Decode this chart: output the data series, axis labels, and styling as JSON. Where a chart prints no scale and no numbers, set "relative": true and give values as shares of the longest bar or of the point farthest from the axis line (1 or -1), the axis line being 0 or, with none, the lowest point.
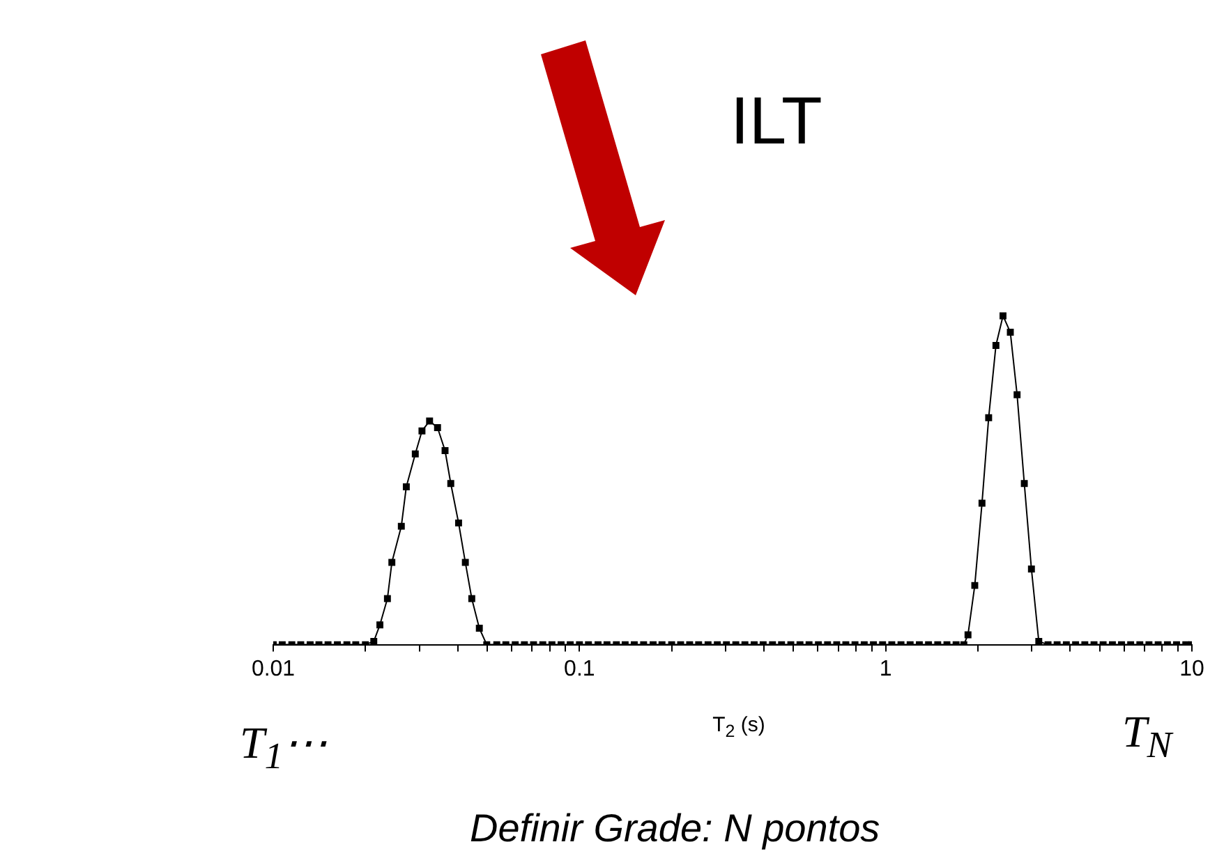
{
  "chart_data": {
    "type": "line",
    "relative": true,
    "xlabel": "T$_{2}$ (s)",
    "log": "x",
    "xlim": [
      0.01,
      10
    ],
    "xticks": [
      0.01,
      {
        "value": 0.02,
        "label": null
      },
      {
        "value": 0.03,
        "label": null
      },
      {
        "value": 0.04,
        "label": null
      },
      {
        "value": 0.05,
        "label": null
      },
      {
        "value": 0.06,
        "label": null
      },
      {
        "value": 0.07,
        "label": null
      },
      {
        "value": 0.08,
        "label": null
      },
      {
        "value": 0.09,
        "label": null
      },
      0.1,
      {
        "value": 0.2,
        "label": null
      },
      {
        "value": 0.3,
        "label": null
      },
      {
        "value": 0.4,
        "label": null
      },
      {
        "value": 0.5,
        "label": null
      },
      {
        "value": 0.6,
        "label": null
      },
      {
        "value": 0.7,
        "label": null
      },
      {
        "value": 0.8,
        "label": null
      },
      {
        "value": 0.9,
        "label": null
      },
      1,
      {
        "value": 2,
        "label": null
      },
      {
        "value": 3,
        "label": null
      },
      {
        "value": 4,
        "label": null
      },
      {
        "value": 5,
        "label": null
      },
      {
        "value": 6,
        "label": null
      },
      {
        "value": 7,
        "label": null
      },
      {
        "value": 8,
        "label": null
      },
      {
        "value": 9,
        "label": null
      },
      10
    ],
    "grid": false,
    "legend": false,
    "marker": "square",
    "line_style": "solid",
    "annotations": [
      "ILT",
      "T$_{1}$⋯",
      "T$_{N}$",
      "Definir Grade: N pontos"
    ],
    "series": [
      {
        "color": "#000000",
        "x": [
          0.01,
          0.0107,
          0.0115,
          0.0123,
          0.0132,
          0.0141,
          0.0151,
          0.0162,
          0.0174,
          0.0186,
          0.02,
          0.0213,
          0.0223,
          0.0236,
          0.0244,
          0.0262,
          0.0272,
          0.0291,
          0.0306,
          0.0324,
          0.0344,
          0.0364,
          0.038,
          0.0403,
          0.0424,
          0.0445,
          0.0471,
          0.0498,
          0.0537,
          0.0575,
          0.0617,
          0.0661,
          0.0708,
          0.0759,
          0.0813,
          0.0871,
          0.0933,
          0.1,
          0.107,
          0.115,
          0.123,
          0.132,
          0.141,
          0.151,
          0.162,
          0.174,
          0.186,
          0.2,
          0.214,
          0.229,
          0.245,
          0.263,
          0.282,
          0.302,
          0.324,
          0.347,
          0.372,
          0.398,
          0.427,
          0.457,
          0.49,
          0.525,
          0.562,
          0.603,
          0.646,
          0.692,
          0.741,
          0.794,
          0.851,
          0.912,
          0.977,
          1.047,
          1.122,
          1.202,
          1.288,
          1.38,
          1.479,
          1.585,
          1.698,
          1.8,
          1.857,
          1.954,
          2.063,
          2.169,
          2.291,
          2.416,
          2.553,
          2.686,
          2.836,
          2.992,
          3.162,
          3.39,
          3.63,
          3.89,
          4.17,
          4.47,
          4.79,
          5.13,
          5.5,
          5.89,
          6.31,
          6.76,
          7.24,
          7.76,
          8.32,
          8.91,
          9.55,
          10
        ],
        "values": [
          0,
          0,
          0,
          0,
          0,
          0,
          0,
          0,
          0,
          0,
          0,
          0.01,
          0.06,
          0.14,
          0.25,
          0.36,
          0.48,
          0.58,
          0.65,
          0.68,
          0.66,
          0.59,
          0.49,
          0.37,
          0.25,
          0.14,
          0.05,
          0,
          0,
          0,
          0,
          0,
          0,
          0,
          0,
          0,
          0,
          0,
          0,
          0,
          0,
          0,
          0,
          0,
          0,
          0,
          0,
          0,
          0,
          0,
          0,
          0,
          0,
          0,
          0,
          0,
          0,
          0,
          0,
          0,
          0,
          0,
          0,
          0,
          0,
          0,
          0,
          0,
          0,
          0,
          0,
          0,
          0,
          0,
          0,
          0,
          0,
          0,
          0,
          0,
          0.03,
          0.18,
          0.43,
          0.69,
          0.91,
          1,
          0.95,
          0.76,
          0.49,
          0.23,
          0.01,
          0,
          0,
          0,
          0,
          0,
          0,
          0,
          0,
          0,
          0,
          0,
          0,
          0,
          0,
          0,
          0,
          0
        ]
      }
    ]
  }
}
